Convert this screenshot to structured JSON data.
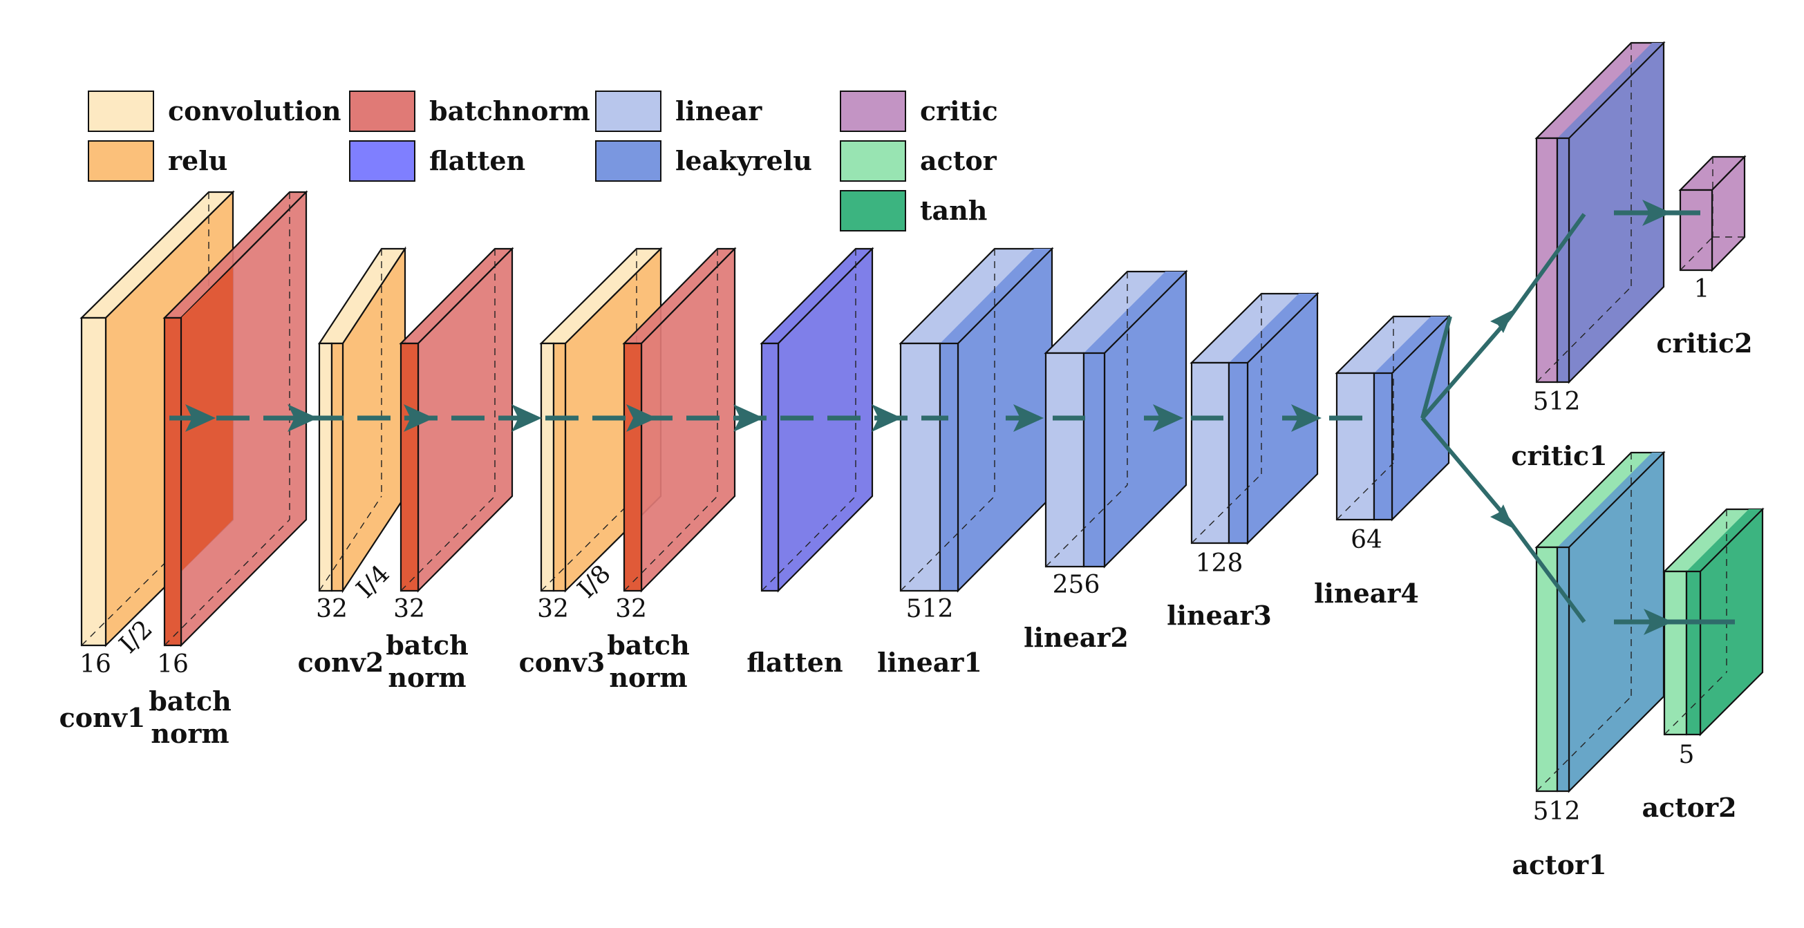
{
  "colors": {
    "convolution": "#fde9c2",
    "relu": "#fbc07a",
    "batchnorm": "#e07a76",
    "batchnorm_overlap": "#e05a38",
    "flatten": "#7f7fe9",
    "linear": "#b8c6ec",
    "leakyrelu": "#7a97e0",
    "critic": "#c394c4",
    "actor": "#98e4b2",
    "tanh": "#3cb480",
    "arrow": "#2f6b6b",
    "actor_blend": "#68a6c8"
  },
  "legend": [
    {
      "key": "convolution",
      "label": "convolution"
    },
    {
      "key": "relu",
      "label": "relu"
    },
    {
      "key": "batchnorm",
      "label": "batchnorm"
    },
    {
      "key": "flatten",
      "label": "flatten"
    },
    {
      "key": "linear",
      "label": "linear"
    },
    {
      "key": "leakyrelu",
      "label": "leakyrelu"
    },
    {
      "key": "critic",
      "label": "critic"
    },
    {
      "key": "actor",
      "label": "actor"
    },
    {
      "key": "tanh",
      "label": "tanh"
    }
  ],
  "labels": {
    "conv1": "conv1",
    "bn1_a": "batch",
    "bn1_b": "norm",
    "conv2": "conv2",
    "bn2_a": "batch",
    "bn2_b": "norm",
    "conv3": "conv3",
    "bn3_a": "batch",
    "bn3_b": "norm",
    "flatten": "flatten",
    "linear1": "linear1",
    "linear2": "linear2",
    "linear3": "linear3",
    "linear4": "linear4",
    "critic1": "critic1",
    "critic2": "critic2",
    "actor1": "actor1",
    "actor2": "actor2"
  },
  "dims": {
    "conv1": "16",
    "bn1": "16",
    "scale1": "I/2",
    "conv2": "32",
    "bn2": "32",
    "scale2": "I/4",
    "conv3": "32",
    "bn3": "32",
    "scale3": "I/8",
    "linear1": "512",
    "linear2": "256",
    "linear3": "128",
    "linear4": "64",
    "critic1": "512",
    "critic2": "1",
    "actor1": "512",
    "actor2": "5"
  }
}
